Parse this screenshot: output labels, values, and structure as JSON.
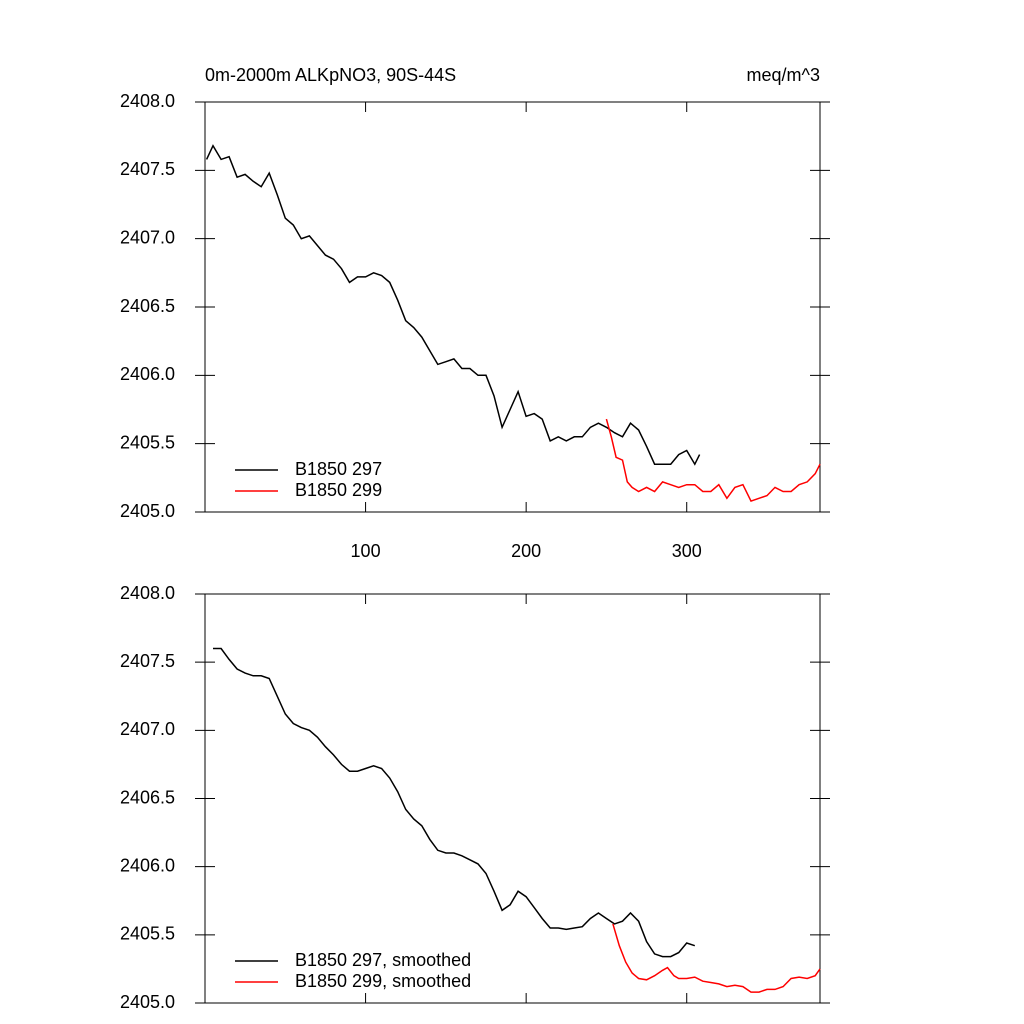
{
  "chart_data": [
    {
      "type": "line",
      "title": "0m-2000m ALKpNO3, 90S-44S",
      "units": "meq/m^3",
      "xlim": [
        0,
        383
      ],
      "xticks": [
        100,
        200,
        300
      ],
      "ylim": [
        2405,
        2408
      ],
      "yticks": [
        {
          "value": 2405,
          "label": "2405.0"
        },
        {
          "value": 2405.5,
          "label": "2405.5"
        },
        {
          "value": 2406,
          "label": "2406.0"
        },
        {
          "value": 2406.5,
          "label": "2406.5"
        },
        {
          "value": 2407,
          "label": "2407.0"
        },
        {
          "value": 2407.5,
          "label": "2407.5"
        },
        {
          "value": 2408,
          "label": "2408.0"
        }
      ],
      "legend": "lower left",
      "series": [
        {
          "name": "B1850 297",
          "color": "#000000",
          "x": [
            1,
            5,
            10,
            15,
            20,
            25,
            30,
            35,
            40,
            45,
            50,
            55,
            60,
            65,
            70,
            75,
            80,
            85,
            90,
            95,
            100,
            105,
            110,
            115,
            120,
            125,
            130,
            135,
            140,
            145,
            150,
            155,
            160,
            165,
            170,
            175,
            180,
            185,
            190,
            195,
            200,
            205,
            210,
            215,
            220,
            225,
            230,
            235,
            240,
            245,
            250,
            255,
            260,
            265,
            270,
            275,
            280,
            285,
            290,
            295,
            300,
            305,
            308
          ],
          "values": [
            2407.58,
            2407.68,
            2407.58,
            2407.6,
            2407.45,
            2407.47,
            2407.42,
            2407.38,
            2407.48,
            2407.32,
            2407.15,
            2407.1,
            2407.0,
            2407.02,
            2406.95,
            2406.88,
            2406.85,
            2406.78,
            2406.68,
            2406.72,
            2406.72,
            2406.75,
            2406.73,
            2406.68,
            2406.55,
            2406.4,
            2406.35,
            2406.28,
            2406.18,
            2406.08,
            2406.1,
            2406.12,
            2406.05,
            2406.05,
            2406.0,
            2406.0,
            2405.85,
            2405.62,
            2405.75,
            2405.88,
            2405.7,
            2405.72,
            2405.68,
            2405.52,
            2405.55,
            2405.52,
            2405.55,
            2405.55,
            2405.62,
            2405.65,
            2405.62,
            2405.58,
            2405.55,
            2405.65,
            2405.6,
            2405.48,
            2405.35,
            2405.35,
            2405.35,
            2405.42,
            2405.45,
            2405.35,
            2405.42
          ]
        },
        {
          "name": "B1850 299",
          "color": "#ff0000",
          "x": [
            250,
            253,
            256,
            260,
            263,
            266,
            270,
            275,
            280,
            285,
            290,
            295,
            300,
            305,
            310,
            315,
            320,
            325,
            330,
            335,
            340,
            345,
            350,
            355,
            360,
            365,
            370,
            375,
            380,
            383
          ],
          "values": [
            2405.68,
            2405.55,
            2405.4,
            2405.38,
            2405.22,
            2405.18,
            2405.15,
            2405.18,
            2405.15,
            2405.22,
            2405.2,
            2405.18,
            2405.2,
            2405.2,
            2405.15,
            2405.15,
            2405.2,
            2405.1,
            2405.18,
            2405.2,
            2405.08,
            2405.1,
            2405.12,
            2405.18,
            2405.15,
            2405.15,
            2405.2,
            2405.22,
            2405.28,
            2405.35
          ]
        }
      ]
    },
    {
      "type": "line",
      "xlim": [
        0,
        383
      ],
      "xticks": [
        100,
        200,
        300
      ],
      "ylim": [
        2405,
        2408
      ],
      "yticks": [
        {
          "value": 2405,
          "label": "2405.0"
        },
        {
          "value": 2405.5,
          "label": "2405.5"
        },
        {
          "value": 2406,
          "label": "2406.0"
        },
        {
          "value": 2406.5,
          "label": "2406.5"
        },
        {
          "value": 2407,
          "label": "2407.0"
        },
        {
          "value": 2407.5,
          "label": "2407.5"
        },
        {
          "value": 2408,
          "label": "2408.0"
        }
      ],
      "legend": "lower left",
      "series": [
        {
          "name": "B1850 297, smoothed",
          "color": "#000000",
          "x": [
            5,
            10,
            15,
            20,
            25,
            30,
            35,
            40,
            45,
            50,
            55,
            60,
            65,
            70,
            75,
            80,
            85,
            90,
            95,
            100,
            105,
            110,
            115,
            120,
            125,
            130,
            135,
            140,
            145,
            150,
            155,
            160,
            165,
            170,
            175,
            180,
            185,
            190,
            195,
            200,
            205,
            210,
            215,
            220,
            225,
            230,
            235,
            240,
            245,
            250,
            255,
            260,
            265,
            270,
            275,
            280,
            285,
            290,
            295,
            300,
            305
          ],
          "values": [
            2407.6,
            2407.6,
            2407.52,
            2407.45,
            2407.42,
            2407.4,
            2407.4,
            2407.38,
            2407.25,
            2407.12,
            2407.05,
            2407.02,
            2407.0,
            2406.95,
            2406.88,
            2406.82,
            2406.75,
            2406.7,
            2406.7,
            2406.72,
            2406.74,
            2406.72,
            2406.65,
            2406.55,
            2406.42,
            2406.35,
            2406.3,
            2406.2,
            2406.12,
            2406.1,
            2406.1,
            2406.08,
            2406.05,
            2406.02,
            2405.95,
            2405.82,
            2405.68,
            2405.72,
            2405.82,
            2405.78,
            2405.7,
            2405.62,
            2405.55,
            2405.55,
            2405.54,
            2405.55,
            2405.56,
            2405.62,
            2405.66,
            2405.62,
            2405.58,
            2405.6,
            2405.66,
            2405.6,
            2405.45,
            2405.36,
            2405.34,
            2405.34,
            2405.37,
            2405.44,
            2405.42
          ]
        },
        {
          "name": "B1850 299, smoothed",
          "color": "#ff0000",
          "x": [
            254,
            258,
            262,
            266,
            270,
            275,
            280,
            285,
            288,
            292,
            295,
            300,
            305,
            310,
            315,
            320,
            325,
            330,
            335,
            340,
            345,
            350,
            355,
            360,
            365,
            370,
            375,
            380,
            383
          ],
          "values": [
            2405.58,
            2405.42,
            2405.3,
            2405.22,
            2405.18,
            2405.17,
            2405.2,
            2405.24,
            2405.26,
            2405.2,
            2405.18,
            2405.18,
            2405.19,
            2405.16,
            2405.15,
            2405.14,
            2405.12,
            2405.13,
            2405.12,
            2405.08,
            2405.08,
            2405.1,
            2405.1,
            2405.12,
            2405.18,
            2405.19,
            2405.18,
            2405.2,
            2405.25
          ]
        }
      ]
    }
  ]
}
